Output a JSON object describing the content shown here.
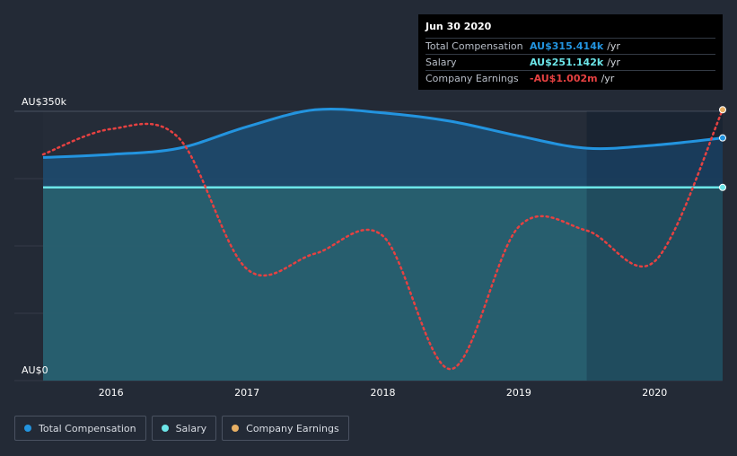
{
  "tooltip": {
    "date": "Jun 30 2020",
    "rows": [
      {
        "label": "Total Compensation",
        "value": "AU$315.414k",
        "unit": "/yr",
        "color": "#2394df"
      },
      {
        "label": "Salary",
        "value": "AU$251.142k",
        "unit": "/yr",
        "color": "#6ce5e8"
      },
      {
        "label": "Company Earnings",
        "value": "-AU$1.002m",
        "unit": "/yr",
        "color": "#e64141"
      }
    ]
  },
  "legend": {
    "items": [
      {
        "label": "Total Compensation",
        "color": "#2394df"
      },
      {
        "label": "Salary",
        "color": "#6ce5e8"
      },
      {
        "label": "Company Earnings",
        "color": "#e8b064"
      }
    ]
  },
  "chart_data": {
    "type": "line",
    "ylabel_top": "AU$350k",
    "ylabel_bottom": "AU$0",
    "ylim": [
      0,
      350
    ],
    "xlim": [
      2015.5,
      2020.5
    ],
    "x_ticks": [
      2016,
      2017,
      2018,
      2019,
      2020
    ],
    "x_tick_labels": [
      "2016",
      "2017",
      "2018",
      "2019",
      "2020"
    ],
    "highlight_start": 2019.5,
    "series": [
      {
        "name": "Total Compensation",
        "unit": "AU$k",
        "color": "#2394df",
        "x": [
          2015.5,
          2016.0,
          2016.5,
          2017.0,
          2017.5,
          2018.0,
          2018.5,
          2019.0,
          2019.5,
          2020.0,
          2020.5
        ],
        "values": [
          290,
          294,
          302,
          330,
          352,
          348,
          337,
          318,
          302,
          306,
          315.4
        ]
      },
      {
        "name": "Salary",
        "unit": "AU$k",
        "color": "#6ce5e8",
        "x": [
          2015.5,
          2020.5
        ],
        "values": [
          251.1,
          251.1
        ]
      },
      {
        "name": "Company Earnings",
        "unit": "relative (own scale)",
        "color": "#e64141",
        "x": [
          2015.5,
          2016.0,
          2016.5,
          2017.0,
          2017.5,
          2018.0,
          2018.5,
          2019.0,
          2019.5,
          2020.0,
          2020.5
        ],
        "values": [
          294,
          327,
          315,
          145,
          165,
          188,
          15,
          200,
          195,
          155,
          352
        ]
      }
    ]
  }
}
